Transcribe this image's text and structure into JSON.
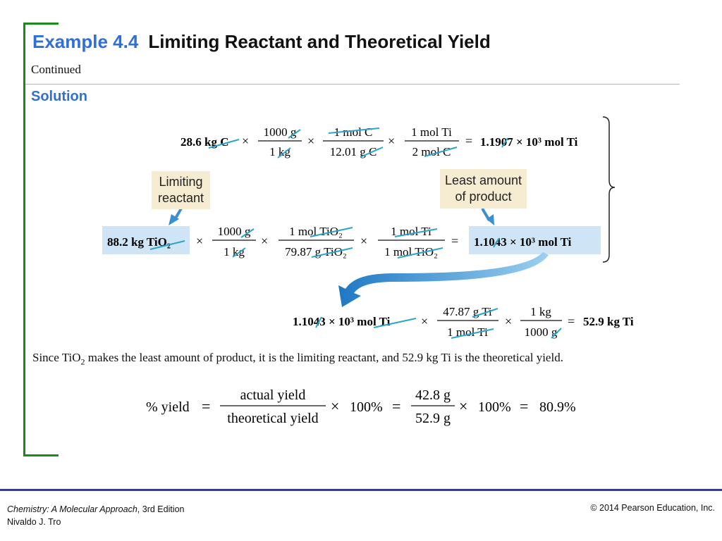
{
  "slide": {
    "title_example": "Example 4.4",
    "title_text": "Limiting Reactant and Theoretical Yield",
    "continued": "Continued",
    "solution_heading": "Solution"
  },
  "equations": {
    "eq1": {
      "start": "28.6 kg C",
      "f1_num": "1000 g",
      "f1_den": "1 kg",
      "f2_num": "1 mol C",
      "f2_den": "12.01 g C",
      "f3_num": "1 mol Ti",
      "f3_den": "2 mol C",
      "result": "1.1907 × 10³ mol Ti"
    },
    "eq2": {
      "start": "88.2 kg TiO₂",
      "f1_num": "1000 g",
      "f1_den": "1 kg",
      "f2_num": "1 mol TiO₂",
      "f2_den": "79.87 g TiO₂",
      "f3_num": "1 mol Ti",
      "f3_den": "1 mol TiO₂",
      "result": "1.1043 × 10³ mol Ti"
    },
    "eq3": {
      "start": "1.1043 × 10³ mol Ti",
      "f1_num": "47.87 g Ti",
      "f1_den": "1 mol Ti",
      "f2_num": "1 kg",
      "f2_den": "1000 g",
      "result": "52.9 kg Ti"
    },
    "yield": {
      "label": "% yield",
      "f1_num": "actual yield",
      "f1_den": "theoretical yield",
      "pct1": "100%",
      "f2_num": "42.8 g",
      "f2_den": "52.9 g",
      "pct2": "100%",
      "result": "80.9%"
    }
  },
  "callouts": {
    "limiting_line1": "Limiting",
    "limiting_line2": "reactant",
    "least_line1": "Least amount",
    "least_line2": "of product"
  },
  "sentence": {
    "before": "Since TiO",
    "sub": "2",
    "after": " makes the least amount of product, it is the limiting reactant, and 52.9 kg Ti is the theoretical yield."
  },
  "footer": {
    "book": "Chemistry: A Molecular Approach",
    "edition": ", 3rd Edition",
    "author": "Nivaldo J. Tro",
    "copyright": "© 2014 Pearson Education, Inc."
  },
  "colors": {
    "title_blue": "#2f6fd6",
    "bracket_green": "#1a8a1a",
    "highlight_blue": "#cfe5f5",
    "callout_tan": "#f5ecd2",
    "cancel_teal": "#2aa6c8",
    "footer_navy": "#3a3a8c"
  }
}
